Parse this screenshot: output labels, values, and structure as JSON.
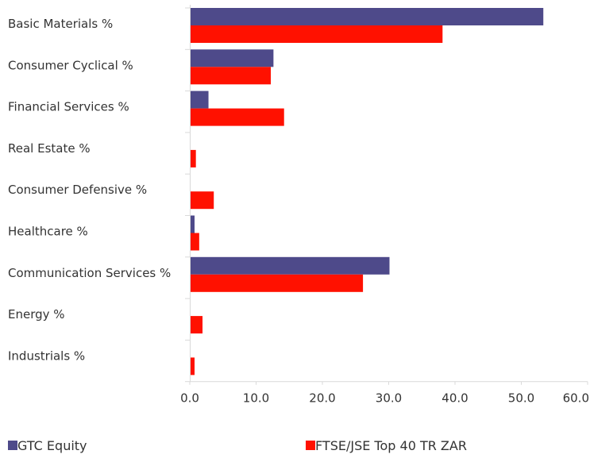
{
  "chart_data": {
    "type": "bar",
    "orientation": "horizontal",
    "categories": [
      "Basic Materials %",
      "Consumer Cyclical %",
      "Financial Services %",
      "Real Estate %",
      "Consumer Defensive %",
      "Healthcare %",
      "Communication Services %",
      "Energy %",
      "Industrials %"
    ],
    "series": [
      {
        "name": "GTC Equity",
        "color": "#4e4a8a",
        "values": [
          53.2,
          12.5,
          2.7,
          0,
          0,
          0.6,
          30.0,
          0,
          0
        ]
      },
      {
        "name": "FTSE/JSE Top 40 TR ZAR",
        "color": "#ff1100",
        "values": [
          38.0,
          12.1,
          14.1,
          0.8,
          3.5,
          1.3,
          26.0,
          1.8,
          0.6
        ]
      }
    ],
    "xlim": [
      0,
      60
    ],
    "xticks": [
      "0.0",
      "10.0",
      "20.0",
      "30.0",
      "40.0",
      "50.0",
      "60.0"
    ],
    "grid": false,
    "legend_position": "bottom"
  }
}
